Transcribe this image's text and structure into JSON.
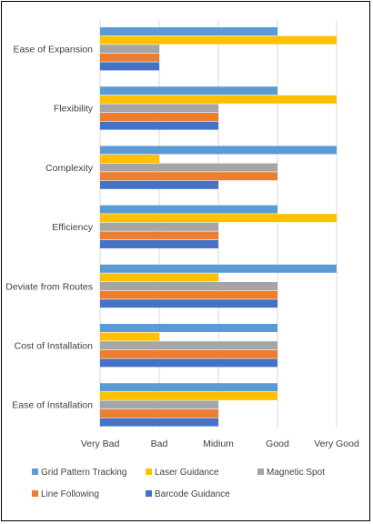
{
  "chart_data": {
    "type": "bar",
    "orientation": "horizontal",
    "categories": [
      "Ease of Expansion",
      "Flexibility",
      "Complexity",
      "Efficiency",
      "Deviate from Routes",
      "Cost of Installation",
      "Ease of Installation"
    ],
    "x_ticks": [
      "Very Bad",
      "Bad",
      "Midium",
      "Good",
      "Very Good"
    ],
    "xlim": [
      0,
      4
    ],
    "grid": true,
    "legend_position": "bottom",
    "series": [
      {
        "name": "Grid Pattern Tracking",
        "color": "#5B9BD5",
        "values": [
          3,
          3,
          4,
          3,
          4,
          3,
          3
        ]
      },
      {
        "name": "Laser Guidance",
        "color": "#FFC000",
        "values": [
          4,
          4,
          1,
          4,
          2,
          1,
          3
        ]
      },
      {
        "name": "Magnetic Spot",
        "color": "#A5A5A5",
        "values": [
          1,
          2,
          3,
          2,
          3,
          3,
          2
        ]
      },
      {
        "name": "Line Following",
        "color": "#ED7D31",
        "values": [
          1,
          2,
          3,
          2,
          3,
          3,
          2
        ]
      },
      {
        "name": "Barcode Guidance",
        "color": "#4472C4",
        "values": [
          1,
          2,
          2,
          2,
          3,
          3,
          2
        ]
      }
    ]
  }
}
